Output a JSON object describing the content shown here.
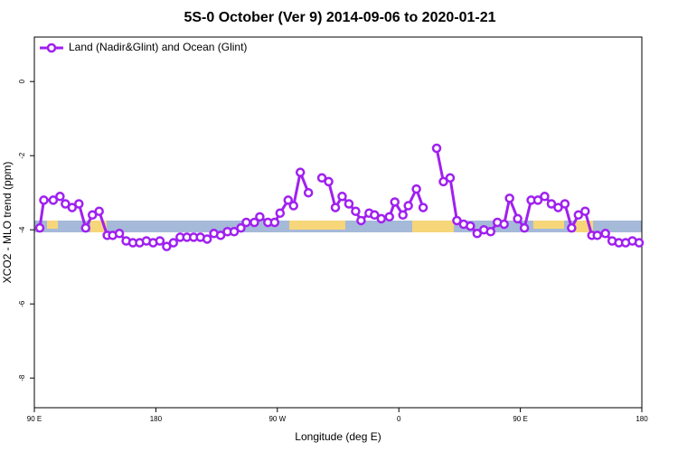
{
  "chart_data": {
    "type": "line",
    "title": "5S-0 October (Ver 9)   2014-09-06 to 2020-01-21",
    "x_label": "Longitude (deg E)",
    "y_label": "XCO2 - MLO trend (ppm)",
    "x": [
      94,
      97,
      104,
      109,
      113,
      118,
      123,
      128,
      133,
      138,
      144,
      148,
      153,
      158,
      163,
      168,
      173,
      178,
      183,
      188,
      193,
      198,
      203,
      208,
      213,
      218,
      223,
      228,
      233,
      238,
      243,
      247,
      253,
      257,
      263,
      268,
      272,
      278,
      282,
      287,
      293,
      298,
      303,
      308,
      313,
      318,
      323,
      328,
      332,
      338,
      342,
      347,
      353,
      357,
      363,
      367,
      373,
      378,
      383,
      388,
      393,
      398,
      403,
      408,
      413,
      418,
      423,
      428,
      433,
      438,
      442,
      448,
      453,
      458,
      463,
      468,
      473,
      478,
      483,
      488,
      493,
      498,
      503,
      507,
      513,
      518,
      523,
      528,
      533,
      538
    ],
    "series": [
      {
        "name": "Land (Nadir&Glint) and Ocean (Glint)",
        "color": "#a020f0",
        "values": [
          -3.95,
          -3.2,
          -3.2,
          -3.1,
          -3.3,
          -3.4,
          -3.3,
          -3.95,
          -3.6,
          -3.5,
          -4.15,
          -4.15,
          -4.1,
          -4.3,
          -4.35,
          -4.35,
          -4.3,
          -4.35,
          -4.3,
          -4.45,
          -4.35,
          -4.2,
          -4.2,
          -4.2,
          -4.2,
          -4.25,
          -4.1,
          -4.15,
          -4.05,
          -4.05,
          -3.95,
          -3.8,
          -3.8,
          -3.65,
          -3.8,
          -3.8,
          -3.55,
          -3.2,
          -3.35,
          -2.45,
          -3.0,
          null,
          -2.6,
          -2.7,
          -3.4,
          -3.1,
          -3.3,
          -3.5,
          -3.75,
          -3.55,
          -3.6,
          -3.7,
          -3.65,
          -3.25,
          -3.6,
          -3.35,
          -2.9,
          -3.4,
          null,
          -1.8,
          -2.7,
          -2.6,
          -3.75,
          -3.85,
          -3.9,
          -4.1,
          -4.0,
          -4.05,
          -3.8,
          -3.85,
          -3.15,
          -3.7,
          -3.95,
          -3.2,
          -3.2,
          -3.1,
          -3.3,
          -3.4,
          -3.3,
          -3.95,
          -3.6,
          -3.5,
          -4.15,
          -4.15,
          -4.1,
          -4.3,
          -4.35,
          -4.35,
          -4.3,
          -4.35
        ]
      }
    ],
    "xlim": [
      90,
      540
    ],
    "xticks": [
      {
        "value": 90,
        "label": "90 E"
      },
      180,
      {
        "value": 270,
        "label": "90 W"
      },
      {
        "value": 360,
        "label": "0"
      },
      {
        "value": 450,
        "label": "90 E"
      },
      {
        "value": 540,
        "label": "180"
      }
    ],
    "ylim": [
      -8.8,
      1.2
    ],
    "yticks": [
      0,
      -2,
      -4,
      -6,
      -8
    ],
    "legend": "top-left"
  }
}
